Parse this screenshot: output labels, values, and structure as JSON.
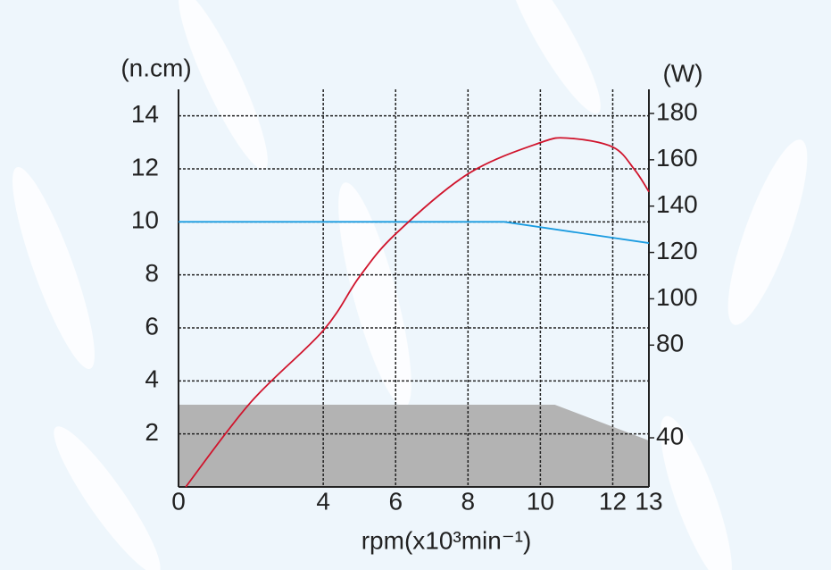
{
  "chart_data": {
    "type": "line",
    "y_label": "(n.cm)",
    "y2_label": "(W)",
    "x_label": "rpm(x10³min⁻¹)",
    "xlim": [
      0,
      13
    ],
    "xticks": [
      0,
      4,
      6,
      8,
      10,
      12,
      13
    ],
    "ylim": [
      0,
      15
    ],
    "yticks": [
      2,
      4,
      6,
      8,
      10,
      12,
      14
    ],
    "y2lim": [
      18.8,
      190.4
    ],
    "y2ticks": [
      40,
      80,
      100,
      120,
      140,
      160,
      180
    ],
    "grid": true,
    "series": [
      {
        "kind": "area",
        "color": "#b3b3b3",
        "x": [
          0,
          10.4,
          13
        ],
        "values": [
          3.1,
          3.1,
          1.75
        ]
      },
      {
        "kind": "line",
        "color": "#1a9be0",
        "x": [
          0,
          9,
          13
        ],
        "values": [
          10,
          10,
          9.2
        ]
      },
      {
        "kind": "line",
        "color": "#d0142c",
        "axis": "y2",
        "x": [
          0.2,
          2,
          4,
          5,
          6,
          8,
          10,
          10.8,
          12,
          12.6,
          13
        ],
        "values": [
          18.8,
          55.4,
          86.3,
          109.5,
          128,
          153.9,
          167.4,
          169.3,
          165.5,
          155.8,
          146.2
        ]
      }
    ]
  }
}
